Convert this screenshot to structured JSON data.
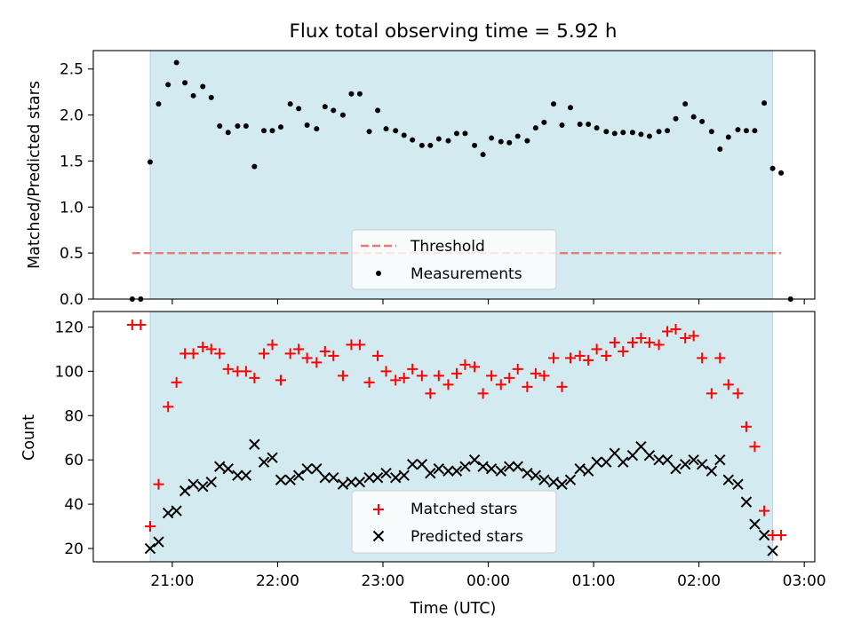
{
  "chart_data": [
    {
      "type": "scatter",
      "title": "Flux total observing time = 5.92 h",
      "ylabel": "Matched/Predicted stars",
      "xlabel": "",
      "x_unit": "hour (UTC, continuing past midnight)",
      "xlim": [
        20.25,
        27.1
      ],
      "ylim": [
        0,
        2.7
      ],
      "yticks": [
        0.0,
        0.5,
        1.0,
        1.5,
        2.0,
        2.5
      ],
      "ytick_labels": [
        "0.0",
        "0.5",
        "1.0",
        "1.5",
        "2.0",
        "2.5"
      ],
      "xticks": [
        21,
        22,
        23,
        24,
        25,
        26,
        27
      ],
      "grid": false,
      "legend_position": "lower center",
      "observing_window": [
        20.79,
        26.7
      ],
      "threshold": {
        "label": "Threshold",
        "y": 0.5,
        "x": [
          20.62,
          26.78
        ],
        "color": "#e97a76"
      },
      "measurements": {
        "label": "Measurements",
        "color": "#000000",
        "points": [
          [
            20.62,
            0.0
          ],
          [
            20.7,
            0.0
          ],
          [
            20.79,
            1.49
          ],
          [
            20.87,
            2.12
          ],
          [
            20.96,
            2.33
          ],
          [
            21.04,
            2.57
          ],
          [
            21.12,
            2.35
          ],
          [
            21.2,
            2.21
          ],
          [
            21.29,
            2.31
          ],
          [
            21.37,
            2.19
          ],
          [
            21.45,
            1.88
          ],
          [
            21.53,
            1.81
          ],
          [
            21.62,
            1.88
          ],
          [
            21.7,
            1.88
          ],
          [
            21.78,
            1.44
          ],
          [
            21.87,
            1.83
          ],
          [
            21.95,
            1.83
          ],
          [
            22.03,
            1.87
          ],
          [
            22.12,
            2.12
          ],
          [
            22.2,
            2.07
          ],
          [
            22.28,
            1.89
          ],
          [
            22.37,
            1.85
          ],
          [
            22.45,
            2.09
          ],
          [
            22.53,
            2.05
          ],
          [
            22.62,
            2.0
          ],
          [
            22.7,
            2.23
          ],
          [
            22.78,
            2.23
          ],
          [
            22.87,
            1.82
          ],
          [
            22.95,
            2.05
          ],
          [
            23.03,
            1.85
          ],
          [
            23.12,
            1.83
          ],
          [
            23.2,
            1.78
          ],
          [
            23.28,
            1.73
          ],
          [
            23.37,
            1.67
          ],
          [
            23.45,
            1.67
          ],
          [
            23.53,
            1.74
          ],
          [
            23.62,
            1.72
          ],
          [
            23.7,
            1.8
          ],
          [
            23.78,
            1.8
          ],
          [
            23.87,
            1.67
          ],
          [
            23.95,
            1.57
          ],
          [
            24.03,
            1.75
          ],
          [
            24.12,
            1.71
          ],
          [
            24.2,
            1.7
          ],
          [
            24.28,
            1.77
          ],
          [
            24.37,
            1.72
          ],
          [
            24.45,
            1.86
          ],
          [
            24.53,
            1.92
          ],
          [
            24.62,
            2.12
          ],
          [
            24.7,
            1.89
          ],
          [
            24.78,
            2.08
          ],
          [
            24.87,
            1.9
          ],
          [
            24.95,
            1.9
          ],
          [
            25.03,
            1.86
          ],
          [
            25.12,
            1.82
          ],
          [
            25.2,
            1.8
          ],
          [
            25.28,
            1.81
          ],
          [
            25.37,
            1.81
          ],
          [
            25.45,
            1.79
          ],
          [
            25.53,
            1.77
          ],
          [
            25.62,
            1.82
          ],
          [
            25.7,
            1.83
          ],
          [
            25.78,
            1.96
          ],
          [
            25.87,
            2.12
          ],
          [
            25.95,
            1.98
          ],
          [
            26.03,
            1.93
          ],
          [
            26.12,
            1.82
          ],
          [
            26.2,
            1.63
          ],
          [
            26.28,
            1.76
          ],
          [
            26.37,
            1.84
          ],
          [
            26.45,
            1.83
          ],
          [
            26.53,
            1.83
          ],
          [
            26.62,
            2.13
          ],
          [
            26.7,
            1.42
          ],
          [
            26.78,
            1.37
          ],
          [
            26.87,
            0.0
          ]
        ]
      }
    },
    {
      "type": "scatter",
      "title": "",
      "xlabel": "Time (UTC)",
      "ylabel": "Count",
      "xlim": [
        20.25,
        27.1
      ],
      "ylim": [
        14,
        127
      ],
      "yticks": [
        20,
        40,
        60,
        80,
        100,
        120
      ],
      "ytick_labels": [
        "20",
        "40",
        "60",
        "80",
        "100",
        "120"
      ],
      "xticks": [
        21,
        22,
        23,
        24,
        25,
        26,
        27
      ],
      "xtick_labels": [
        "21:00",
        "22:00",
        "23:00",
        "00:00",
        "01:00",
        "02:00",
        "03:00"
      ],
      "grid": false,
      "legend_position": "lower center",
      "observing_window": [
        20.79,
        26.7
      ],
      "series": [
        {
          "name": "Matched stars",
          "marker": "+",
          "color": "#ff0000",
          "points": [
            [
              20.62,
              121
            ],
            [
              20.7,
              121
            ],
            [
              20.79,
              30
            ],
            [
              20.87,
              49
            ],
            [
              20.96,
              84
            ],
            [
              21.04,
              95
            ],
            [
              21.12,
              108
            ],
            [
              21.2,
              108
            ],
            [
              21.29,
              111
            ],
            [
              21.37,
              110
            ],
            [
              21.45,
              108
            ],
            [
              21.53,
              101
            ],
            [
              21.62,
              100
            ],
            [
              21.7,
              100
            ],
            [
              21.78,
              97
            ],
            [
              21.87,
              108
            ],
            [
              21.95,
              112
            ],
            [
              22.03,
              96
            ],
            [
              22.12,
              108
            ],
            [
              22.2,
              110
            ],
            [
              22.28,
              106
            ],
            [
              22.37,
              104
            ],
            [
              22.45,
              109
            ],
            [
              22.53,
              107
            ],
            [
              22.62,
              98
            ],
            [
              22.7,
              112
            ],
            [
              22.78,
              112
            ],
            [
              22.87,
              95
            ],
            [
              22.95,
              107
            ],
            [
              23.03,
              100
            ],
            [
              23.12,
              96
            ],
            [
              23.2,
              97
            ],
            [
              23.28,
              101
            ],
            [
              23.37,
              98
            ],
            [
              23.45,
              90
            ],
            [
              23.53,
              98
            ],
            [
              23.62,
              94
            ],
            [
              23.7,
              99
            ],
            [
              23.78,
              103
            ],
            [
              23.87,
              102
            ],
            [
              23.95,
              90
            ],
            [
              24.03,
              98
            ],
            [
              24.12,
              94
            ],
            [
              24.2,
              97
            ],
            [
              24.28,
              101
            ],
            [
              24.37,
              93
            ],
            [
              24.45,
              99
            ],
            [
              24.53,
              98
            ],
            [
              24.62,
              106
            ],
            [
              24.7,
              93
            ],
            [
              24.78,
              106
            ],
            [
              24.87,
              107
            ],
            [
              24.95,
              105
            ],
            [
              25.03,
              110
            ],
            [
              25.12,
              107
            ],
            [
              25.2,
              113
            ],
            [
              25.28,
              109
            ],
            [
              25.37,
              113
            ],
            [
              25.45,
              115
            ],
            [
              25.53,
              113
            ],
            [
              25.62,
              112
            ],
            [
              25.7,
              118
            ],
            [
              25.78,
              119
            ],
            [
              25.87,
              115
            ],
            [
              25.95,
              116
            ],
            [
              26.03,
              106
            ],
            [
              26.12,
              90
            ],
            [
              26.2,
              106
            ],
            [
              26.28,
              94
            ],
            [
              26.37,
              90
            ],
            [
              26.45,
              75
            ],
            [
              26.53,
              66
            ],
            [
              26.62,
              37
            ],
            [
              26.7,
              26
            ],
            [
              26.78,
              26
            ]
          ]
        },
        {
          "name": "Predicted stars",
          "marker": "x",
          "color": "#000000",
          "points": [
            [
              20.79,
              20
            ],
            [
              20.87,
              23
            ],
            [
              20.96,
              36
            ],
            [
              21.04,
              37
            ],
            [
              21.12,
              46
            ],
            [
              21.2,
              49
            ],
            [
              21.29,
              48
            ],
            [
              21.37,
              50
            ],
            [
              21.45,
              57
            ],
            [
              21.53,
              56
            ],
            [
              21.62,
              53
            ],
            [
              21.7,
              53
            ],
            [
              21.78,
              67
            ],
            [
              21.87,
              59
            ],
            [
              21.95,
              61
            ],
            [
              22.03,
              51
            ],
            [
              22.12,
              51
            ],
            [
              22.2,
              53
            ],
            [
              22.28,
              56
            ],
            [
              22.37,
              56
            ],
            [
              22.45,
              52
            ],
            [
              22.53,
              52
            ],
            [
              22.62,
              49
            ],
            [
              22.7,
              50
            ],
            [
              22.78,
              50
            ],
            [
              22.87,
              52
            ],
            [
              22.95,
              52
            ],
            [
              23.03,
              54
            ],
            [
              23.12,
              52
            ],
            [
              23.2,
              53
            ],
            [
              23.28,
              58
            ],
            [
              23.37,
              58
            ],
            [
              23.45,
              54
            ],
            [
              23.53,
              56
            ],
            [
              23.62,
              55
            ],
            [
              23.7,
              55
            ],
            [
              23.78,
              57
            ],
            [
              23.87,
              60
            ],
            [
              23.95,
              57
            ],
            [
              24.03,
              56
            ],
            [
              24.12,
              55
            ],
            [
              24.2,
              57
            ],
            [
              24.28,
              57
            ],
            [
              24.37,
              54
            ],
            [
              24.45,
              53
            ],
            [
              24.53,
              51
            ],
            [
              24.62,
              50
            ],
            [
              24.7,
              49
            ],
            [
              24.78,
              51
            ],
            [
              24.87,
              56
            ],
            [
              24.95,
              55
            ],
            [
              25.03,
              59
            ],
            [
              25.12,
              59
            ],
            [
              25.2,
              63
            ],
            [
              25.28,
              59
            ],
            [
              25.37,
              62
            ],
            [
              25.45,
              66
            ],
            [
              25.53,
              62
            ],
            [
              25.62,
              60
            ],
            [
              25.7,
              60
            ],
            [
              25.78,
              56
            ],
            [
              25.87,
              58
            ],
            [
              25.95,
              60
            ],
            [
              26.03,
              58
            ],
            [
              26.12,
              55
            ],
            [
              26.2,
              60
            ],
            [
              26.28,
              51
            ],
            [
              26.37,
              49
            ],
            [
              26.45,
              41
            ],
            [
              26.53,
              31
            ],
            [
              26.62,
              26
            ],
            [
              26.7,
              19
            ]
          ]
        }
      ]
    }
  ]
}
